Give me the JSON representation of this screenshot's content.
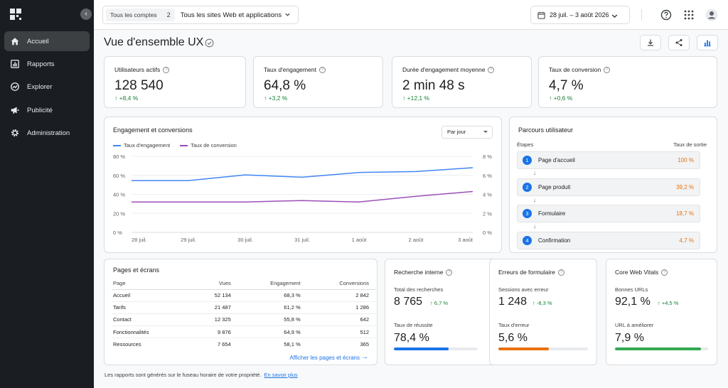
{
  "sidebar": {
    "items": [
      {
        "label": "Accueil",
        "icon": "home-icon",
        "active": true
      },
      {
        "label": "Rapports",
        "icon": "bar-chart-icon"
      },
      {
        "label": "Explorer",
        "icon": "explore-icon"
      },
      {
        "label": "Publicité",
        "icon": "megaphone-icon"
      },
      {
        "label": "Administration",
        "icon": "gear-icon"
      }
    ]
  },
  "topbar": {
    "accounts_label": "Tous les comptes",
    "accounts_count": "2",
    "sites_label": "Tous les sites Web et applications",
    "date_range": "28 juil. – 3 août 2026"
  },
  "page": {
    "title": "Vue d'ensemble UX"
  },
  "kpis": [
    {
      "label": "Utilisateurs actifs",
      "value": "128 540",
      "delta": "+8,4 %"
    },
    {
      "label": "Taux d'engagement",
      "value": "64,8 %",
      "delta": "+3,2 %"
    },
    {
      "label": "Durée d'engagement moyenne",
      "value": "2 min 48 s",
      "delta": "+12,1 %"
    },
    {
      "label": "Taux de conversion",
      "value": "4,7 %",
      "delta": "+0,6 %"
    }
  ],
  "engagement_chart": {
    "title": "Engagement et conversions",
    "period_select": "Par jour",
    "colors": {
      "engagement": "#4285f4",
      "conversion": "#9c4fb8"
    }
  },
  "chart_data": {
    "type": "line",
    "title": "Engagement et conversions",
    "categories": [
      "28 juil.",
      "29 juil.",
      "30 juil.",
      "31 juil.",
      "1 août",
      "2 août",
      "3 août"
    ],
    "series": [
      {
        "name": "Taux d'engagement",
        "axis": "left",
        "values": [
          54.5,
          54.5,
          60.5,
          58,
          63,
          64,
          68
        ]
      },
      {
        "name": "Taux de conversion",
        "axis": "right",
        "values": [
          3.2,
          3.2,
          3.2,
          3.35,
          3.2,
          3.8,
          4.3
        ]
      }
    ],
    "y_left": {
      "ticks": [
        "0 %",
        "20 %",
        "40 %",
        "60 %",
        "80 %"
      ],
      "range": [
        0,
        80
      ]
    },
    "y_right": {
      "ticks": [
        "0 %",
        "2 %",
        "4 %",
        "6 %",
        "8 %"
      ],
      "range": [
        0,
        8
      ]
    },
    "legend_position": "top-left",
    "grid": true
  },
  "journey": {
    "title": "Parcours utilisateur",
    "col_steps": "Étapes",
    "col_exit": "Taux de sortie",
    "steps": [
      {
        "num": "1",
        "label": "Page d'accueil",
        "rate": "100 %"
      },
      {
        "num": "2",
        "label": "Page produit",
        "rate": "39,2 %"
      },
      {
        "num": "3",
        "label": "Formulaire",
        "rate": "18,7 %"
      },
      {
        "num": "4",
        "label": "Confirmation",
        "rate": "4,7 %"
      }
    ],
    "arrow": "↓"
  },
  "pages_table": {
    "title": "Pages et écrans",
    "headers": [
      "Page",
      "Vues",
      "Engagement",
      "Conversions"
    ],
    "rows": [
      [
        "Accueil",
        "52 134",
        "68,3 %",
        "2 842"
      ],
      [
        "Tarifs",
        "21 487",
        "61,2 %",
        "1 286"
      ],
      [
        "Contact",
        "12 325",
        "55,8 %",
        "642"
      ],
      [
        "Fonctionnalités",
        "9 876",
        "64,9 %",
        "512"
      ],
      [
        "Ressources",
        "7 654",
        "58,1 %",
        "365"
      ]
    ],
    "link": "Afficher les pages et écrans",
    "link_arrow": "→"
  },
  "search": {
    "title": "Recherche interne",
    "total_label": "Total des recherches",
    "total_value": "8 765",
    "total_delta": "6,7 %",
    "rate_label": "Taux de réussite",
    "rate_value": "78,4 %",
    "bar_fill": 0.65,
    "bar_color": "#1a73e8"
  },
  "form_errors": {
    "title": "Erreurs de formulaire",
    "sessions_label": "Sessions avec erreur",
    "sessions_value": "1 248",
    "sessions_delta": "-8,3 %",
    "rate_label": "Taux d'erreur",
    "rate_value": "5,6 %",
    "bar_fill": 0.56,
    "bar_color": "#e8710a"
  },
  "cwv": {
    "title": "Core Web Vitals",
    "good_label": "Bonnes URLs",
    "good_value": "92,1 %",
    "good_delta": "+4,5 %",
    "improve_label": "URL à améliorer",
    "improve_value": "7,9 %",
    "bar_fill": 0.92,
    "bar_color": "#34a853"
  },
  "footer": {
    "text": "Les rapports sont générés sur le fuseau horaire de votre propriété.",
    "link": "En savoir plus"
  }
}
